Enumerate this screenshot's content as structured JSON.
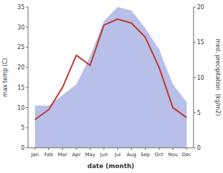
{
  "chart_data": {
    "type": "line",
    "categories": [
      "Jan",
      "Feb",
      "Mar",
      "Apr",
      "May",
      "Jun",
      "Jul",
      "Aug",
      "Sep",
      "Oct",
      "Nov",
      "Dec"
    ],
    "xlabel": "date (month)",
    "ylabel": "max temp (C)",
    "y2label": "med. precipitation  (kg/m2)",
    "series": [
      {
        "type": "area",
        "axis": "y2",
        "color": "#b8bfe8",
        "values": [
          6.0,
          6.0,
          7.5,
          9.0,
          13.0,
          18.0,
          20.0,
          19.5,
          17.0,
          14.0,
          9.0,
          6.5
        ]
      },
      {
        "type": "line",
        "color": "#c0392b",
        "values": [
          7.0,
          9.5,
          15.0,
          23.0,
          20.5,
          30.5,
          32.0,
          31.0,
          27.5,
          20.0,
          10.0,
          7.5
        ]
      }
    ],
    "ylim": [
      0,
      35
    ],
    "yticks": [
      0,
      5,
      10,
      15,
      20,
      25,
      30,
      35
    ],
    "y2lim": [
      0,
      20
    ],
    "y2ticks": [
      0,
      5,
      10,
      15,
      20
    ],
    "grid": false
  }
}
